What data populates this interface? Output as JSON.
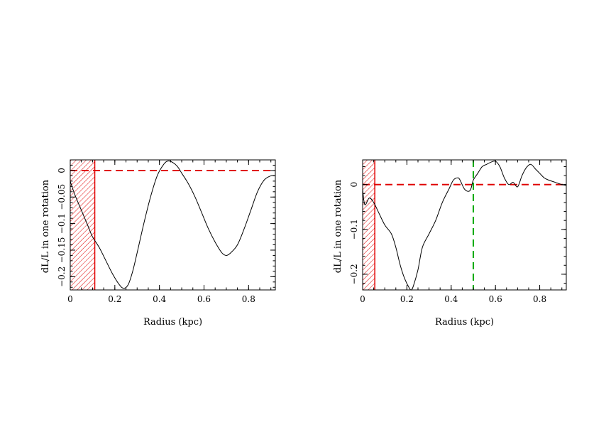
{
  "chart_data": [
    {
      "type": "line",
      "xlabel": "Radius (kpc)",
      "ylabel": "dL/L in one rotation",
      "xlim": [
        0,
        0.92
      ],
      "ylim": [
        -0.225,
        0.02
      ],
      "xticks": [
        0,
        0.2,
        0.4,
        0.6,
        0.8
      ],
      "xtick_labels": [
        "0",
        "0.2",
        "0.4",
        "0.6",
        "0.8"
      ],
      "yticks": [
        -0.2,
        -0.15,
        -0.1,
        -0.05,
        0
      ],
      "ytick_labels": [
        "−0.2",
        "−0.15",
        "−0.1",
        "−0.05",
        "0"
      ],
      "grid": false,
      "colors": {
        "curve": "#000000",
        "zero_line": "#e00000",
        "hatch": "#e00000"
      },
      "shaded_region": [
        0,
        0.11
      ],
      "reference_lines": [
        {
          "axis": "y",
          "value": 0,
          "style": "dashed",
          "color": "#e00000"
        }
      ],
      "series": [
        {
          "x": [
            0,
            0.02,
            0.05,
            0.08,
            0.1,
            0.13,
            0.16,
            0.19,
            0.22,
            0.24,
            0.26,
            0.28,
            0.3,
            0.33,
            0.36,
            0.39,
            0.42,
            0.44,
            0.46,
            0.48,
            0.5,
            0.53,
            0.56,
            0.59,
            0.62,
            0.65,
            0.68,
            0.7,
            0.72,
            0.75,
            0.78,
            0.81,
            0.84,
            0.87,
            0.9,
            0.92
          ],
          "y": [
            -0.02,
            -0.045,
            -0.075,
            -0.105,
            -0.125,
            -0.145,
            -0.17,
            -0.195,
            -0.215,
            -0.222,
            -0.215,
            -0.19,
            -0.155,
            -0.1,
            -0.05,
            -0.01,
            0.012,
            0.018,
            0.015,
            0.008,
            -0.005,
            -0.025,
            -0.05,
            -0.08,
            -0.11,
            -0.135,
            -0.155,
            -0.16,
            -0.155,
            -0.14,
            -0.11,
            -0.075,
            -0.04,
            -0.018,
            -0.01,
            -0.01
          ]
        }
      ]
    },
    {
      "type": "line",
      "xlabel": "Radius (kpc)",
      "ylabel": "dL/L in one rotation",
      "xlim": [
        0,
        0.92
      ],
      "ylim": [
        -0.235,
        0.055
      ],
      "xticks": [
        0,
        0.2,
        0.4,
        0.6,
        0.8
      ],
      "xtick_labels": [
        "0",
        "0.2",
        "0.4",
        "0.6",
        "0.8"
      ],
      "yticks": [
        -0.2,
        -0.1,
        0
      ],
      "ytick_labels": [
        "−0.2",
        "−0.1",
        "0"
      ],
      "grid": false,
      "colors": {
        "curve": "#000000",
        "zero_line": "#e00000",
        "hatch": "#e00000",
        "vertical_line": "#00aa00"
      },
      "shaded_region": [
        0,
        0.055
      ],
      "reference_lines": [
        {
          "axis": "y",
          "value": 0,
          "style": "dashed",
          "color": "#e00000"
        },
        {
          "axis": "x",
          "value": 0.5,
          "style": "dashed",
          "color": "#00aa00"
        }
      ],
      "series": [
        {
          "x": [
            0,
            0.01,
            0.03,
            0.05,
            0.07,
            0.1,
            0.13,
            0.15,
            0.17,
            0.19,
            0.21,
            0.22,
            0.23,
            0.25,
            0.27,
            0.3,
            0.33,
            0.36,
            0.39,
            0.41,
            0.43,
            0.44,
            0.46,
            0.48,
            0.49,
            0.5,
            0.52,
            0.54,
            0.56,
            0.58,
            0.6,
            0.62,
            0.64,
            0.66,
            0.68,
            0.7,
            0.72,
            0.74,
            0.76,
            0.78,
            0.8,
            0.82,
            0.84,
            0.87,
            0.9,
            0.92
          ],
          "y": [
            -0.01,
            -0.045,
            -0.03,
            -0.04,
            -0.06,
            -0.09,
            -0.11,
            -0.14,
            -0.18,
            -0.21,
            -0.23,
            -0.235,
            -0.225,
            -0.19,
            -0.14,
            -0.11,
            -0.08,
            -0.04,
            -0.01,
            0.01,
            0.015,
            0.01,
            -0.01,
            -0.015,
            -0.008,
            0.01,
            0.025,
            0.04,
            0.045,
            0.05,
            0.052,
            0.04,
            0.015,
            0.0,
            0.005,
            -0.005,
            0.02,
            0.038,
            0.045,
            0.035,
            0.025,
            0.015,
            0.01,
            0.005,
            0.0,
            -0.002
          ]
        }
      ]
    }
  ]
}
